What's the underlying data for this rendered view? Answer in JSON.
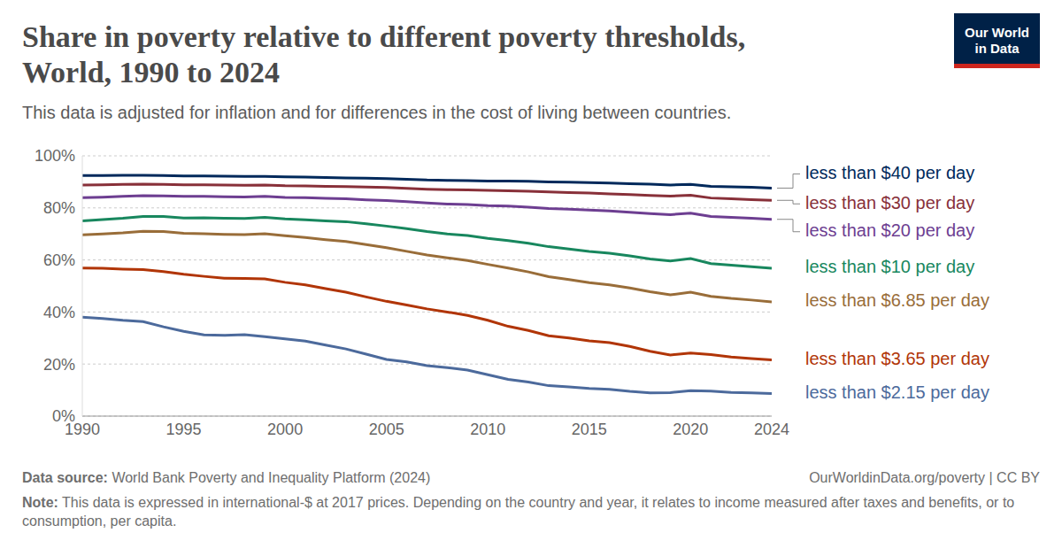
{
  "chart_data": {
    "type": "line",
    "title": [
      "Share in poverty relative to different poverty thresholds,",
      "World, 1990 to 2024"
    ],
    "subtitle": "This data is adjusted for inflation and for differences in the cost of living between countries.",
    "x": [
      1990,
      1991,
      1992,
      1993,
      1994,
      1995,
      1996,
      1997,
      1998,
      1999,
      2000,
      2001,
      2002,
      2003,
      2004,
      2005,
      2006,
      2007,
      2008,
      2009,
      2010,
      2011,
      2012,
      2013,
      2014,
      2015,
      2016,
      2017,
      2018,
      2019,
      2020,
      2021,
      2022,
      2023,
      2024
    ],
    "series": [
      {
        "name": "less than $40 per day",
        "color": "#00295b",
        "values": [
          92.4,
          92.4,
          92.5,
          92.5,
          92.4,
          92.3,
          92.3,
          92.2,
          92.1,
          92.1,
          91.9,
          91.8,
          91.7,
          91.5,
          91.4,
          91.2,
          91.0,
          90.7,
          90.6,
          90.5,
          90.3,
          90.3,
          90.2,
          90.0,
          89.9,
          89.7,
          89.5,
          89.3,
          89.1,
          88.8,
          89.0,
          88.3,
          88.1,
          87.9,
          87.6
        ]
      },
      {
        "name": "less than $30 per day",
        "color": "#883039",
        "values": [
          88.8,
          88.9,
          89.0,
          89.1,
          89.0,
          88.9,
          88.9,
          88.8,
          88.7,
          88.8,
          88.5,
          88.4,
          88.3,
          88.2,
          88.0,
          87.8,
          87.5,
          87.2,
          87.0,
          86.9,
          86.7,
          86.6,
          86.4,
          86.1,
          85.9,
          85.7,
          85.4,
          85.1,
          84.8,
          84.5,
          84.9,
          83.8,
          83.5,
          83.2,
          82.9
        ]
      },
      {
        "name": "less than $20 per day",
        "color": "#6d3e91",
        "values": [
          83.9,
          84.1,
          84.4,
          84.7,
          84.6,
          84.4,
          84.4,
          84.3,
          84.2,
          84.4,
          84.0,
          83.9,
          83.7,
          83.5,
          83.1,
          82.8,
          82.4,
          81.9,
          81.5,
          81.3,
          80.9,
          80.7,
          80.3,
          79.8,
          79.5,
          79.2,
          78.8,
          78.3,
          77.8,
          77.4,
          78.0,
          76.7,
          76.4,
          76.0,
          75.6
        ]
      },
      {
        "name": "less than $10 per day",
        "color": "#18875e",
        "values": [
          75.0,
          75.5,
          76.0,
          76.7,
          76.7,
          76.1,
          76.2,
          76.0,
          75.9,
          76.4,
          75.8,
          75.4,
          75.0,
          74.7,
          73.9,
          73.0,
          72.0,
          70.9,
          70.0,
          69.4,
          68.3,
          67.4,
          66.4,
          65.1,
          64.2,
          63.3,
          62.6,
          61.6,
          60.4,
          59.6,
          60.5,
          58.6,
          58.0,
          57.4,
          56.8
        ]
      },
      {
        "name": "less than $6.85 per day",
        "color": "#996d39",
        "values": [
          69.6,
          70.0,
          70.4,
          71.0,
          70.9,
          70.2,
          70.1,
          69.8,
          69.7,
          70.1,
          69.3,
          68.6,
          67.8,
          67.1,
          65.9,
          64.7,
          63.3,
          61.9,
          60.8,
          59.8,
          58.3,
          56.9,
          55.4,
          53.6,
          52.5,
          51.3,
          50.4,
          49.2,
          47.8,
          46.6,
          47.6,
          46.0,
          45.2,
          44.6,
          43.9
        ]
      },
      {
        "name": "less than $3.65 per day",
        "color": "#b13507",
        "values": [
          56.9,
          56.8,
          56.5,
          56.3,
          55.5,
          54.5,
          53.7,
          53.0,
          52.9,
          52.7,
          51.4,
          50.4,
          49.0,
          47.6,
          45.8,
          44.1,
          42.7,
          41.2,
          40.0,
          38.7,
          36.8,
          34.5,
          32.9,
          30.9,
          30.0,
          28.9,
          28.2,
          26.8,
          24.9,
          23.5,
          24.2,
          23.6,
          22.7,
          22.1,
          21.6
        ]
      },
      {
        "name": "less than $2.15 per day",
        "color": "#4c6a9c",
        "values": [
          38.0,
          37.5,
          36.8,
          36.3,
          34.3,
          32.6,
          31.2,
          31.0,
          31.3,
          30.5,
          29.7,
          28.8,
          27.3,
          25.8,
          23.8,
          21.8,
          20.8,
          19.4,
          18.6,
          17.7,
          15.9,
          14.1,
          13.1,
          11.7,
          11.2,
          10.6,
          10.3,
          9.5,
          8.9,
          9.0,
          9.8,
          9.6,
          9.1,
          8.9,
          8.7
        ]
      }
    ],
    "xlim": [
      1990,
      2024
    ],
    "xticks": [
      1990,
      1995,
      2000,
      2005,
      2010,
      2015,
      2020,
      2024
    ],
    "ylim": [
      0,
      100
    ],
    "yticks": [
      {
        "value": 0,
        "label": "0%"
      },
      {
        "value": 20,
        "label": "20%"
      },
      {
        "value": 40,
        "label": "40%"
      },
      {
        "value": 60,
        "label": "60%"
      },
      {
        "value": 80,
        "label": "80%"
      },
      {
        "value": 100,
        "label": "100%"
      }
    ],
    "grid": true
  },
  "source_label": "Data source:",
  "source": "World Bank Poverty and Inequality Platform (2024)",
  "url": "OurWorldinData.org/poverty | CC BY",
  "note_label": "Note:",
  "note": "This data is expressed in international-$ at 2017 prices. Depending on the country and year, it relates to income measured after taxes and benefits, or to consumption, per capita.",
  "logo": [
    "Our World",
    "in Data"
  ]
}
